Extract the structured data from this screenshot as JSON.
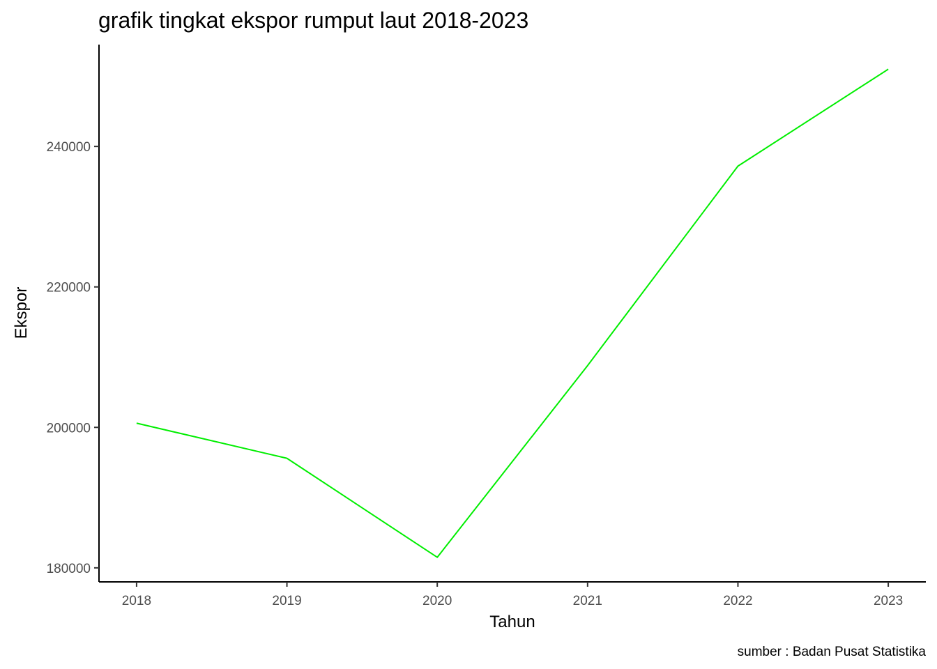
{
  "chart_data": {
    "type": "line",
    "title": "grafik tingkat ekspor rumput laut 2018-2023",
    "xlabel": "Tahun",
    "ylabel": "Ekspor",
    "caption": "sumber : Badan Pusat Statistika",
    "x": [
      2018,
      2019,
      2020,
      2021,
      2022,
      2023
    ],
    "x_tick_labels": [
      "2018",
      "2019",
      "2020",
      "2021",
      "2022",
      "2023"
    ],
    "y_ticks": [
      180000,
      200000,
      220000,
      240000
    ],
    "y_tick_labels": [
      "180000",
      "200000",
      "220000",
      "240000"
    ],
    "series": [
      {
        "values": [
          200600,
          195600,
          181500,
          208800,
          237200,
          251000
        ],
        "color": "#00ee00"
      }
    ],
    "ylim": [
      178000,
      254500
    ],
    "xlim": [
      2017.75,
      2023.25
    ],
    "grid": false,
    "legend": "none"
  }
}
